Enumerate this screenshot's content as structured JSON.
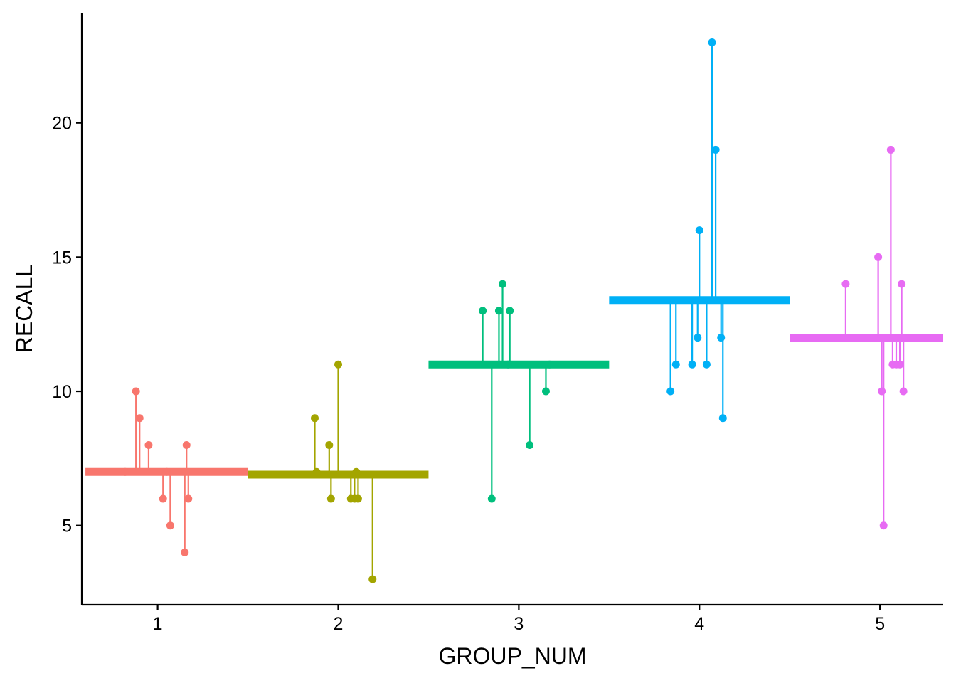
{
  "chart_data": {
    "type": "scatter",
    "xlabel": "GROUP_NUM",
    "ylabel": "RECALL",
    "xlim": [
      0.58,
      5.35
    ],
    "ylim": [
      2.05,
      24.1
    ],
    "x_ticks": [
      1,
      2,
      3,
      4,
      5
    ],
    "y_ticks": [
      5,
      10,
      15,
      20
    ],
    "grid": false,
    "legend": "none",
    "groups": [
      {
        "group": 1,
        "color": "#F8766D",
        "mean": 7.0,
        "mean_line_x": [
          0.6,
          1.5
        ],
        "points": [
          {
            "x": 0.82,
            "y": 7
          },
          {
            "x": 0.88,
            "y": 10
          },
          {
            "x": 0.9,
            "y": 9
          },
          {
            "x": 0.95,
            "y": 8
          },
          {
            "x": 1.03,
            "y": 6
          },
          {
            "x": 1.05,
            "y": 7
          },
          {
            "x": 1.07,
            "y": 5
          },
          {
            "x": 1.15,
            "y": 4
          },
          {
            "x": 1.16,
            "y": 8
          },
          {
            "x": 1.17,
            "y": 6
          }
        ]
      },
      {
        "group": 2,
        "color": "#A3A500",
        "mean": 6.9,
        "mean_line_x": [
          1.5,
          2.5
        ],
        "points": [
          {
            "x": 1.87,
            "y": 9
          },
          {
            "x": 1.88,
            "y": 7
          },
          {
            "x": 1.95,
            "y": 8
          },
          {
            "x": 1.96,
            "y": 6
          },
          {
            "x": 2.0,
            "y": 11
          },
          {
            "x": 2.07,
            "y": 6
          },
          {
            "x": 2.09,
            "y": 6
          },
          {
            "x": 2.1,
            "y": 7
          },
          {
            "x": 2.11,
            "y": 6
          },
          {
            "x": 2.19,
            "y": 3
          }
        ]
      },
      {
        "group": 3,
        "color": "#00BF7D",
        "mean": 11.0,
        "mean_line_x": [
          2.5,
          3.5
        ],
        "points": [
          {
            "x": 2.8,
            "y": 13
          },
          {
            "x": 2.85,
            "y": 6
          },
          {
            "x": 2.89,
            "y": 13
          },
          {
            "x": 2.91,
            "y": 14
          },
          {
            "x": 2.94,
            "y": 11
          },
          {
            "x": 2.95,
            "y": 13
          },
          {
            "x": 3.06,
            "y": 8
          },
          {
            "x": 3.15,
            "y": 10
          },
          {
            "x": 3.17,
            "y": 11
          }
        ]
      },
      {
        "group": 4,
        "color": "#00B0F6",
        "mean": 13.4,
        "mean_line_x": [
          3.5,
          4.5
        ],
        "points": [
          {
            "x": 3.84,
            "y": 10
          },
          {
            "x": 3.87,
            "y": 11
          },
          {
            "x": 3.96,
            "y": 11
          },
          {
            "x": 3.99,
            "y": 12
          },
          {
            "x": 4.0,
            "y": 16
          },
          {
            "x": 4.04,
            "y": 11
          },
          {
            "x": 4.07,
            "y": 23
          },
          {
            "x": 4.09,
            "y": 19
          },
          {
            "x": 4.12,
            "y": 12
          },
          {
            "x": 4.13,
            "y": 9
          }
        ]
      },
      {
        "group": 5,
        "color": "#E76BF3",
        "mean": 12.0,
        "mean_line_x": [
          4.5,
          5.35
        ],
        "points": [
          {
            "x": 4.81,
            "y": 14
          },
          {
            "x": 4.99,
            "y": 15
          },
          {
            "x": 5.01,
            "y": 10
          },
          {
            "x": 5.02,
            "y": 5
          },
          {
            "x": 5.06,
            "y": 19
          },
          {
            "x": 5.07,
            "y": 11
          },
          {
            "x": 5.09,
            "y": 11
          },
          {
            "x": 5.11,
            "y": 11
          },
          {
            "x": 5.12,
            "y": 14
          },
          {
            "x": 5.13,
            "y": 10
          }
        ]
      }
    ]
  }
}
